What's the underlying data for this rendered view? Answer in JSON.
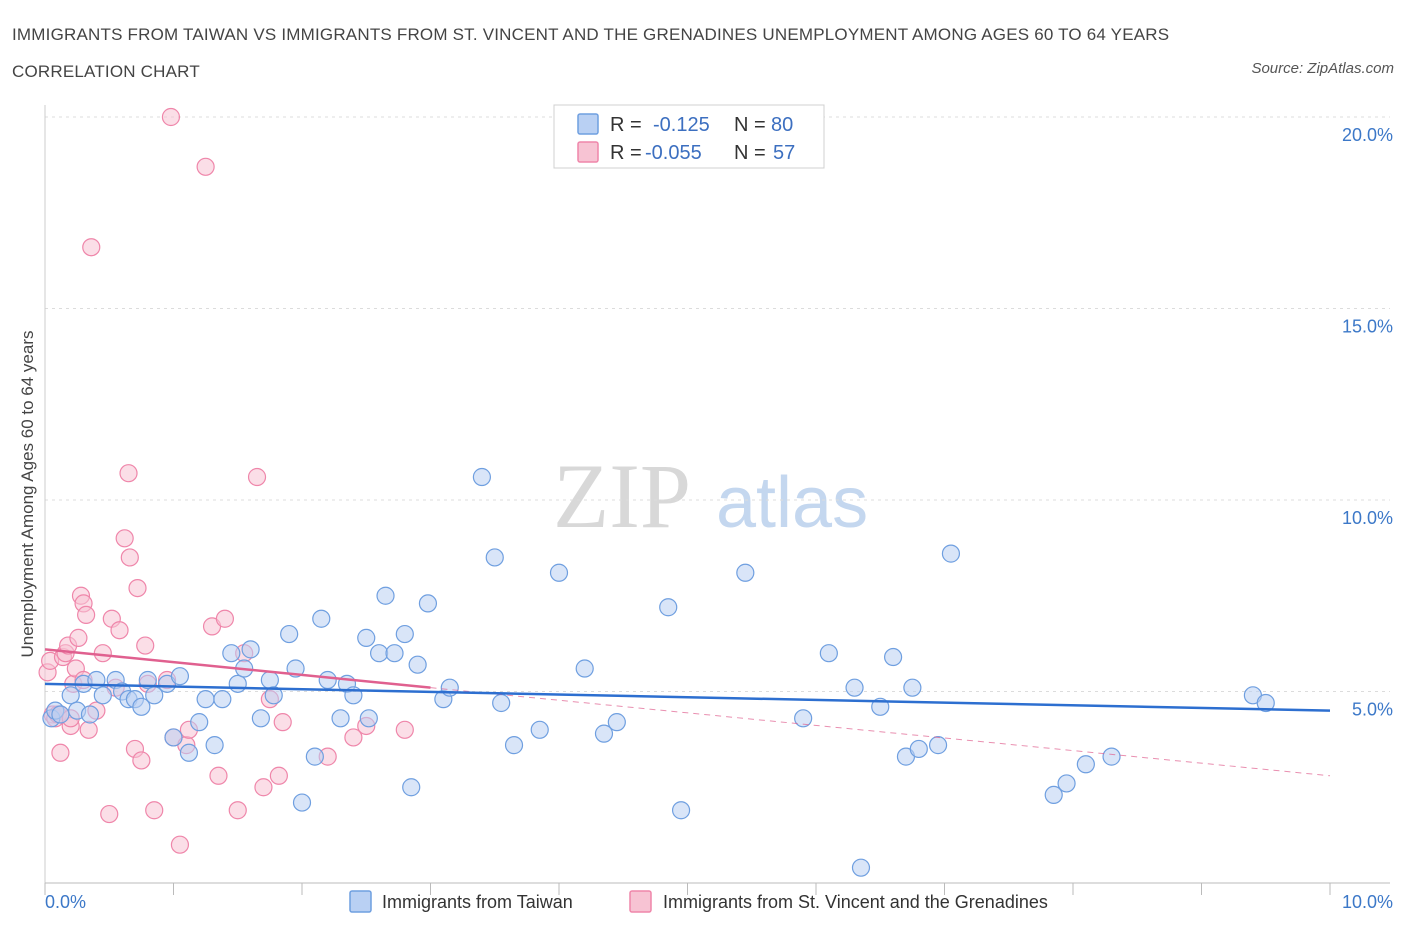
{
  "title": "IMMIGRANTS FROM TAIWAN VS IMMIGRANTS FROM ST. VINCENT AND THE GRENADINES UNEMPLOYMENT AMONG AGES 60 TO 64 YEARS CORRELATION CHART",
  "source": "Source: ZipAtlas.com",
  "watermark": {
    "zip": "ZIP",
    "atlas": "atlas"
  },
  "colors": {
    "blue": "#6f9fe0",
    "blue_fill": "#b9d0f3",
    "pink": "#ef86aa",
    "pink_fill": "#f7c3d3",
    "blue_line": "#2d6fd0",
    "pink_line": "#e0608f"
  },
  "legend": {
    "row1": {
      "r_label": "R =",
      "r_value": "-0.125",
      "n_label": "N =",
      "n_value": "80"
    },
    "row2": {
      "r_label": "R =",
      "r_value": "-0.055",
      "n_label": "N =",
      "n_value": "57"
    }
  },
  "chart_data": {
    "type": "scatter",
    "title": "IMMIGRANTS FROM TAIWAN VS IMMIGRANTS FROM ST. VINCENT AND THE GRENADINES UNEMPLOYMENT AMONG AGES 60 TO 64 YEARS CORRELATION CHART",
    "ylabel": "Unemployment Among Ages 60 to 64 years",
    "xlabel": "",
    "xlim": [
      0,
      10
    ],
    "ylim": [
      0,
      20
    ],
    "x_tick_labels": [
      "0.0%",
      "10.0%"
    ],
    "y_ticks": [
      5,
      10,
      15,
      20
    ],
    "y_tick_labels": [
      "5.0%",
      "10.0%",
      "15.0%",
      "20.0%"
    ],
    "grid": true,
    "legend_placement": "top-center",
    "series": [
      {
        "name": "Immigrants from Taiwan",
        "color": "#6f9fe0",
        "R": -0.125,
        "N": 80,
        "trend": {
          "x": [
            0,
            10
          ],
          "y": [
            5.2,
            4.5
          ]
        },
        "points": [
          [
            0.05,
            4.3
          ],
          [
            0.08,
            4.5
          ],
          [
            0.12,
            4.4
          ],
          [
            0.2,
            4.9
          ],
          [
            0.25,
            4.5
          ],
          [
            0.3,
            5.2
          ],
          [
            0.35,
            4.4
          ],
          [
            0.4,
            5.3
          ],
          [
            0.45,
            4.9
          ],
          [
            0.55,
            5.3
          ],
          [
            0.6,
            5.0
          ],
          [
            0.65,
            4.8
          ],
          [
            0.7,
            4.8
          ],
          [
            0.75,
            4.6
          ],
          [
            0.8,
            5.3
          ],
          [
            0.85,
            4.9
          ],
          [
            0.95,
            5.2
          ],
          [
            1.0,
            3.8
          ],
          [
            1.05,
            5.4
          ],
          [
            1.12,
            3.4
          ],
          [
            1.2,
            4.2
          ],
          [
            1.25,
            4.8
          ],
          [
            1.32,
            3.6
          ],
          [
            1.38,
            4.8
          ],
          [
            1.45,
            6.0
          ],
          [
            1.5,
            5.2
          ],
          [
            1.55,
            5.6
          ],
          [
            1.6,
            6.1
          ],
          [
            1.68,
            4.3
          ],
          [
            1.75,
            5.3
          ],
          [
            1.78,
            4.9
          ],
          [
            1.9,
            6.5
          ],
          [
            1.95,
            5.6
          ],
          [
            2.0,
            2.1
          ],
          [
            2.1,
            3.3
          ],
          [
            2.15,
            6.9
          ],
          [
            2.2,
            5.3
          ],
          [
            2.3,
            4.3
          ],
          [
            2.35,
            5.2
          ],
          [
            2.4,
            4.9
          ],
          [
            2.5,
            6.4
          ],
          [
            2.52,
            4.3
          ],
          [
            2.6,
            6.0
          ],
          [
            2.65,
            7.5
          ],
          [
            2.72,
            6.0
          ],
          [
            2.8,
            6.5
          ],
          [
            2.85,
            2.5
          ],
          [
            2.9,
            5.7
          ],
          [
            2.98,
            7.3
          ],
          [
            3.1,
            4.8
          ],
          [
            3.15,
            5.1
          ],
          [
            3.4,
            10.6
          ],
          [
            3.5,
            8.5
          ],
          [
            3.55,
            4.7
          ],
          [
            3.65,
            3.6
          ],
          [
            3.85,
            4.0
          ],
          [
            4.0,
            8.1
          ],
          [
            4.2,
            5.6
          ],
          [
            4.35,
            3.9
          ],
          [
            4.45,
            4.2
          ],
          [
            4.85,
            7.2
          ],
          [
            4.95,
            1.9
          ],
          [
            5.45,
            8.1
          ],
          [
            5.9,
            4.3
          ],
          [
            6.1,
            6.0
          ],
          [
            6.3,
            5.1
          ],
          [
            6.35,
            0.4
          ],
          [
            6.5,
            4.6
          ],
          [
            6.6,
            5.9
          ],
          [
            6.7,
            3.3
          ],
          [
            6.75,
            5.1
          ],
          [
            6.8,
            3.5
          ],
          [
            6.95,
            3.6
          ],
          [
            7.05,
            8.6
          ],
          [
            7.85,
            2.3
          ],
          [
            7.95,
            2.6
          ],
          [
            8.1,
            3.1
          ],
          [
            8.3,
            3.3
          ],
          [
            9.4,
            4.9
          ],
          [
            9.5,
            4.7
          ]
        ]
      },
      {
        "name": "Immigrants from St. Vincent and the Grenadines",
        "color": "#ef86aa",
        "R": -0.055,
        "N": 57,
        "trend": {
          "x": [
            0,
            3.0
          ],
          "y": [
            6.1,
            5.1
          ]
        },
        "trend_extended": {
          "x": [
            3.0,
            10
          ],
          "y": [
            5.1,
            2.8
          ]
        },
        "points": [
          [
            0.02,
            5.5
          ],
          [
            0.04,
            5.8
          ],
          [
            0.06,
            4.4
          ],
          [
            0.08,
            4.3
          ],
          [
            0.1,
            4.4
          ],
          [
            0.12,
            3.4
          ],
          [
            0.14,
            5.9
          ],
          [
            0.16,
            6.0
          ],
          [
            0.18,
            6.2
          ],
          [
            0.2,
            4.1
          ],
          [
            0.22,
            5.2
          ],
          [
            0.24,
            5.6
          ],
          [
            0.26,
            6.4
          ],
          [
            0.28,
            7.5
          ],
          [
            0.3,
            7.3
          ],
          [
            0.32,
            7.0
          ],
          [
            0.34,
            4.0
          ],
          [
            0.36,
            16.6
          ],
          [
            0.4,
            4.5
          ],
          [
            0.45,
            6.0
          ],
          [
            0.5,
            1.8
          ],
          [
            0.52,
            6.9
          ],
          [
            0.55,
            5.1
          ],
          [
            0.58,
            6.6
          ],
          [
            0.62,
            9.0
          ],
          [
            0.65,
            10.7
          ],
          [
            0.66,
            8.5
          ],
          [
            0.7,
            3.5
          ],
          [
            0.72,
            7.7
          ],
          [
            0.75,
            3.2
          ],
          [
            0.78,
            6.2
          ],
          [
            0.8,
            5.2
          ],
          [
            0.85,
            1.9
          ],
          [
            0.95,
            5.3
          ],
          [
            0.98,
            20.0
          ],
          [
            1.0,
            3.8
          ],
          [
            1.05,
            1.0
          ],
          [
            1.1,
            3.6
          ],
          [
            1.12,
            4.0
          ],
          [
            1.25,
            18.7
          ],
          [
            1.3,
            6.7
          ],
          [
            1.35,
            2.8
          ],
          [
            1.4,
            6.9
          ],
          [
            1.5,
            1.9
          ],
          [
            1.55,
            6.0
          ],
          [
            1.65,
            10.6
          ],
          [
            1.7,
            2.5
          ],
          [
            1.75,
            4.8
          ],
          [
            1.82,
            2.8
          ],
          [
            1.85,
            4.2
          ],
          [
            2.2,
            3.3
          ],
          [
            2.4,
            3.8
          ],
          [
            2.5,
            4.1
          ],
          [
            2.8,
            4.0
          ],
          [
            0.12,
            4.4
          ],
          [
            0.2,
            4.3
          ],
          [
            0.3,
            5.3
          ]
        ]
      }
    ]
  },
  "bottom_legend": {
    "item1": "Immigrants from Taiwan",
    "item2": "Immigrants from St. Vincent and the Grenadines"
  }
}
